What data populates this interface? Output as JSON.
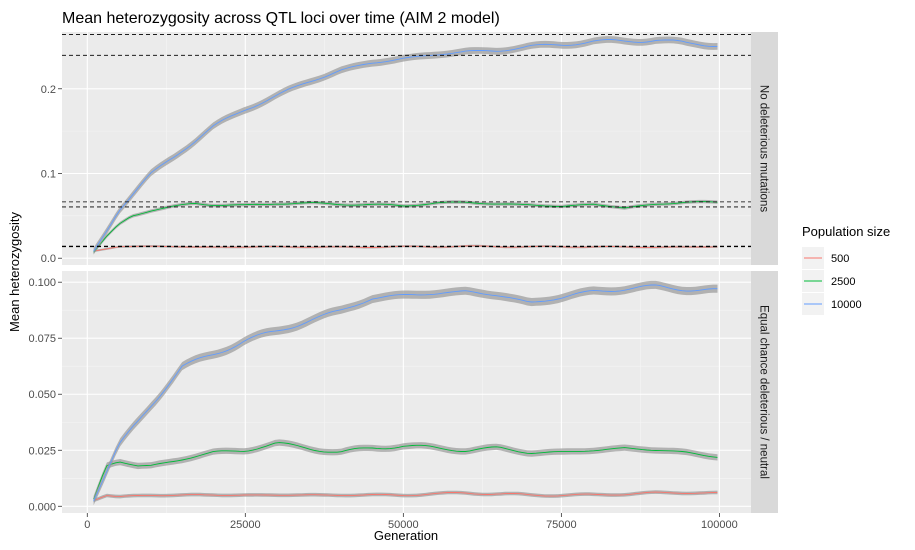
{
  "chart_data": {
    "type": "line",
    "title": "Mean heterozygosity across QTL loci over time (AIM 2 model)",
    "xlabel": "Generation",
    "ylabel": "Mean heterozygosity",
    "x_ticks": [
      0,
      25000,
      50000,
      75000,
      100000
    ],
    "x_tick_labels": [
      "0",
      "25000",
      "50000",
      "75000",
      "100000"
    ],
    "xlim": [
      -4000,
      105000
    ],
    "legend": {
      "title": "Population size",
      "placement": "right",
      "entries": [
        "500",
        "2500",
        "10000"
      ]
    },
    "colors": {
      "500": "#f8766d",
      "2500": "#00ba38",
      "10000": "#619cff"
    },
    "ribbon_color": "#999999",
    "facets": [
      {
        "strip": "No deleterious mutations",
        "ylim": [
          -0.008,
          0.267
        ],
        "y_ticks": [
          0.0,
          0.1,
          0.2
        ],
        "y_tick_labels": [
          "0.0",
          "0.1",
          "0.2"
        ],
        "ref_lines": [
          0.2395,
          0.264,
          0.0605,
          0.0665,
          0.0135,
          0.0142
        ],
        "series": [
          {
            "name": "500",
            "ribbon": 0.0012,
            "x": [
              1000,
              5000,
              10000,
              20000,
              30000,
              40000,
              50000,
              60000,
              70000,
              80000,
              90000,
              100000
            ],
            "y": [
              0.008,
              0.014,
              0.014,
              0.013,
              0.0135,
              0.013,
              0.0135,
              0.014,
              0.0135,
              0.0135,
              0.013,
              0.0135
            ]
          },
          {
            "name": "2500",
            "ribbon": 0.002,
            "x": [
              1000,
              3000,
              5000,
              7000,
              10000,
              13000,
              17000,
              20000,
              25000,
              30000,
              40000,
              50000,
              55000,
              60000,
              65000,
              70000,
              75000,
              80000,
              85000,
              90000,
              95000,
              100000
            ],
            "y": [
              0.007,
              0.025,
              0.04,
              0.05,
              0.056,
              0.06,
              0.065,
              0.063,
              0.062,
              0.065,
              0.064,
              0.062,
              0.065,
              0.066,
              0.064,
              0.063,
              0.061,
              0.064,
              0.059,
              0.064,
              0.066,
              0.066
            ]
          },
          {
            "name": "10000",
            "ribbon": 0.004,
            "x": [
              1000,
              5000,
              10000,
              15000,
              20000,
              25000,
              30000,
              35000,
              40000,
              45000,
              50000,
              55000,
              60000,
              65000,
              70000,
              75000,
              80000,
              85000,
              90000,
              95000,
              100000
            ],
            "y": [
              0.007,
              0.058,
              0.098,
              0.128,
              0.155,
              0.176,
              0.192,
              0.208,
              0.222,
              0.23,
              0.236,
              0.24,
              0.244,
              0.245,
              0.25,
              0.252,
              0.256,
              0.256,
              0.258,
              0.253,
              0.252
            ]
          }
        ]
      },
      {
        "strip": "Equal chance deleterious / neutral",
        "ylim": [
          -0.003,
          0.105
        ],
        "y_ticks": [
          0.0,
          0.025,
          0.05,
          0.075,
          0.1
        ],
        "y_tick_labels": [
          "0.000",
          "0.025",
          "0.050",
          "0.075",
          "0.100"
        ],
        "ref_lines": [],
        "series": [
          {
            "name": "500",
            "ribbon": 0.0008,
            "x": [
              1000,
              3000,
              5000,
              10000,
              20000,
              30000,
              40000,
              50000,
              60000,
              70000,
              80000,
              90000,
              100000
            ],
            "y": [
              0.003,
              0.005,
              0.004,
              0.005,
              0.005,
              0.005,
              0.005,
              0.005,
              0.006,
              0.005,
              0.005,
              0.006,
              0.006
            ]
          },
          {
            "name": "2500",
            "ribbon": 0.0014,
            "x": [
              1000,
              3000,
              5000,
              8000,
              10000,
              15000,
              20000,
              25000,
              30000,
              35000,
              40000,
              45000,
              50000,
              55000,
              60000,
              65000,
              70000,
              75000,
              80000,
              85000,
              90000,
              95000,
              100000
            ],
            "y": [
              0.003,
              0.018,
              0.02,
              0.018,
              0.018,
              0.021,
              0.024,
              0.025,
              0.028,
              0.026,
              0.024,
              0.026,
              0.027,
              0.026,
              0.025,
              0.026,
              0.024,
              0.024,
              0.025,
              0.026,
              0.025,
              0.024,
              0.022
            ]
          },
          {
            "name": "10000",
            "ribbon": 0.0018,
            "x": [
              1000,
              5000,
              10000,
              15000,
              20000,
              25000,
              30000,
              35000,
              40000,
              45000,
              50000,
              55000,
              60000,
              65000,
              70000,
              75000,
              80000,
              85000,
              90000,
              95000,
              100000
            ],
            "y": [
              0.003,
              0.027,
              0.045,
              0.062,
              0.068,
              0.074,
              0.078,
              0.083,
              0.087,
              0.093,
              0.094,
              0.095,
              0.096,
              0.094,
              0.091,
              0.093,
              0.096,
              0.097,
              0.098,
              0.097,
              0.096
            ]
          }
        ]
      }
    ]
  }
}
